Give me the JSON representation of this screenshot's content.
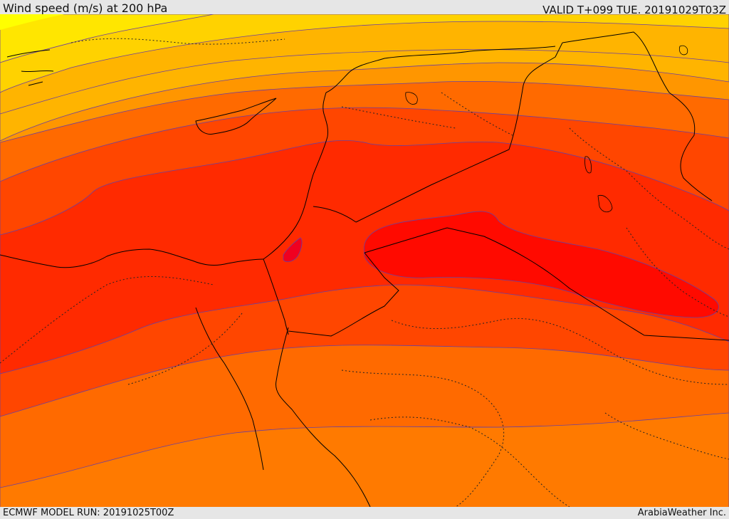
{
  "header": {
    "title": "Wind speed (m/s) at 200 hPa",
    "valid": "VALID T+099 TUE. 20191029T03Z"
  },
  "footer": {
    "model_run": "ECMWF MODEL RUN: 20191025T00Z",
    "provider": "ArabiaWeather Inc."
  },
  "colors": {
    "band_1": "#ffff00",
    "band_2": "#ffd700",
    "band_3": "#ffb400",
    "band_4": "#ff9600",
    "band_5": "#ff6e00",
    "band_6": "#ff4a00",
    "band_7": "#ff2a00",
    "band_8": "#ff1a00",
    "band_9": "#ff0000",
    "contour": "#6a3fa0",
    "border": "#000000"
  }
}
